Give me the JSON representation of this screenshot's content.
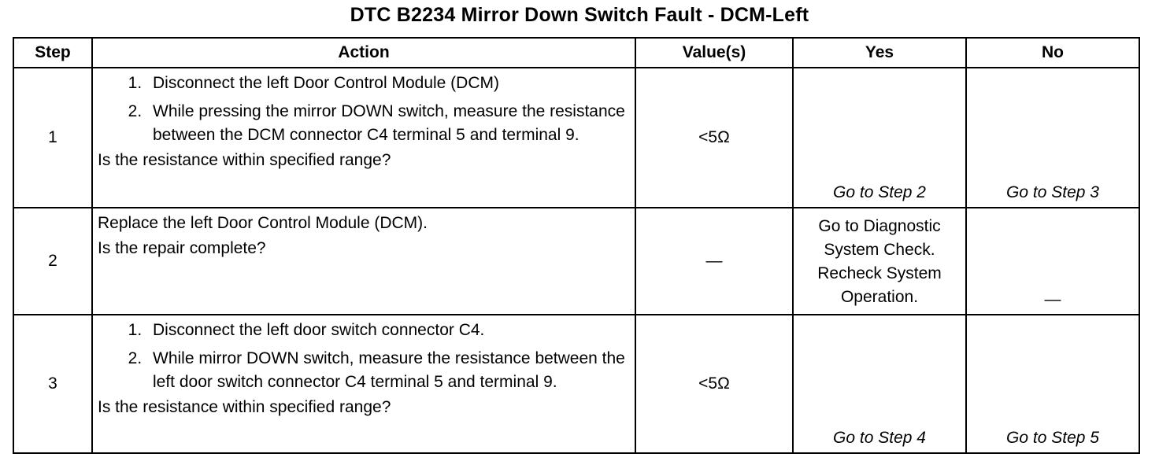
{
  "title": "DTC B2234 Mirror Down Switch Fault - DCM-Left",
  "headers": {
    "step": "Step",
    "action": "Action",
    "values": "Value(s)",
    "yes": "Yes",
    "no": "No"
  },
  "rows": [
    {
      "step": "1",
      "action_items": [
        "Disconnect the left Door Control Module (DCM)",
        "While pressing the mirror DOWN switch, measure the resistance between the DCM connector C4 terminal 5 and terminal 9."
      ],
      "question": "Is the resistance within specified range?",
      "value": "<5Ω",
      "yes": "Go to Step 2",
      "no": "Go to Step 3"
    },
    {
      "step": "2",
      "action_text": "Replace the left Door Control Module (DCM).",
      "question": "Is the repair complete?",
      "value": "—",
      "yes": "Go to Diagnostic System Check. Recheck System Operation.",
      "no": "—"
    },
    {
      "step": "3",
      "action_items": [
        "Disconnect the left door switch connector C4.",
        "While mirror DOWN switch, measure the resistance between the left door switch connector C4 terminal 5 and terminal 9."
      ],
      "question": "Is the resistance within specified range?",
      "value": "<5Ω",
      "yes": "Go to Step 4",
      "no": "Go to Step 5"
    }
  ]
}
